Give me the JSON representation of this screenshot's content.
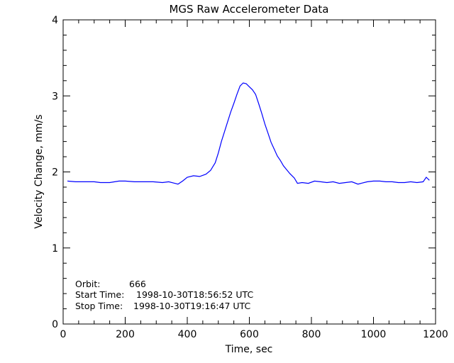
{
  "chart_data": {
    "type": "line",
    "title": "MGS Raw Accelerometer Data",
    "xlabel": "Time, sec",
    "ylabel": "Velocity Change, mm/s",
    "xlim": [
      0,
      1200
    ],
    "ylim": [
      0,
      4
    ],
    "xticks": [
      "0",
      "200",
      "400",
      "600",
      "800",
      "1000",
      "1200"
    ],
    "yticks": [
      "0",
      "1",
      "2",
      "3",
      "4"
    ],
    "grid": false,
    "series": [
      {
        "color": "#0000ff",
        "x": [
          14,
          40,
          70,
          100,
          120,
          150,
          180,
          200,
          230,
          260,
          290,
          320,
          340,
          360,
          370,
          385,
          400,
          420,
          440,
          460,
          475,
          490,
          500,
          510,
          520,
          530,
          540,
          550,
          560,
          570,
          580,
          590,
          600,
          610,
          620,
          630,
          640,
          650,
          660,
          670,
          680,
          690,
          700,
          710,
          720,
          730,
          745,
          755,
          770,
          790,
          810,
          830,
          850,
          870,
          890,
          910,
          930,
          950,
          960,
          980,
          1000,
          1020,
          1040,
          1060,
          1080,
          1100,
          1120,
          1140,
          1160,
          1170,
          1180
        ],
        "y": [
          1.88,
          1.87,
          1.87,
          1.87,
          1.86,
          1.86,
          1.88,
          1.88,
          1.87,
          1.87,
          1.87,
          1.86,
          1.87,
          1.85,
          1.84,
          1.88,
          1.93,
          1.95,
          1.94,
          1.97,
          2.02,
          2.12,
          2.25,
          2.4,
          2.53,
          2.66,
          2.79,
          2.9,
          3.02,
          3.13,
          3.17,
          3.16,
          3.12,
          3.08,
          3.02,
          2.9,
          2.77,
          2.63,
          2.51,
          2.39,
          2.3,
          2.21,
          2.15,
          2.08,
          2.03,
          1.98,
          1.92,
          1.85,
          1.86,
          1.85,
          1.88,
          1.87,
          1.86,
          1.87,
          1.85,
          1.86,
          1.87,
          1.84,
          1.85,
          1.87,
          1.88,
          1.88,
          1.87,
          1.87,
          1.86,
          1.86,
          1.87,
          1.86,
          1.87,
          1.93,
          1.89
        ]
      }
    ],
    "annotations": {
      "orbit_label": "Orbit:",
      "orbit_value": "666",
      "start_label": "Start Time:",
      "start_value": "1998-10-30T18:56:52 UTC",
      "stop_label": "Stop Time:",
      "stop_value": "1998-10-30T19:16:47 UTC"
    }
  }
}
